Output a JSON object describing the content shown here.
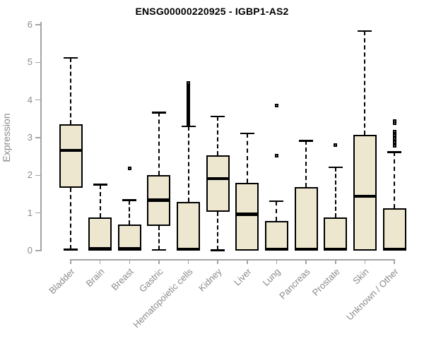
{
  "title": "ENSG00000220925 - IGBP1-AS2",
  "y_axis": {
    "label": "Expression",
    "ticks": [
      0,
      1,
      2,
      3,
      4,
      5,
      6
    ]
  },
  "colors": {
    "box_fill": "#EDE7D0",
    "line": "#000000",
    "axis_line": "#A3A3A3",
    "tick_text": "#8A8A8A",
    "title_text": "#000000",
    "background": "#FFFFFF"
  },
  "chart_data": {
    "type": "boxplot",
    "title": "ENSG00000220925 - IGBP1-AS2",
    "xlabel": "",
    "ylabel": "Expression",
    "ylim": [
      0,
      6
    ],
    "grid": false,
    "categories": [
      "Bladder",
      "Brain",
      "Breast",
      "Gastric",
      "Hematopoietic cells",
      "Kidney",
      "Liver",
      "Lung",
      "Pancreas",
      "Prostate",
      "Skin",
      "Unknown / Other"
    ],
    "series": [
      {
        "name": "Bladder",
        "whisker_low": 0.03,
        "q1": 1.66,
        "median": 2.66,
        "q3": 3.35,
        "whisker_high": 5.12,
        "outliers": []
      },
      {
        "name": "Brain",
        "whisker_low": 0.0,
        "q1": 0.0,
        "median": 0.05,
        "q3": 0.88,
        "whisker_high": 1.75,
        "outliers": []
      },
      {
        "name": "Breast",
        "whisker_low": 0.0,
        "q1": 0.0,
        "median": 0.05,
        "q3": 0.69,
        "whisker_high": 1.34,
        "outliers": [
          2.19
        ]
      },
      {
        "name": "Gastric",
        "whisker_low": 0.02,
        "q1": 0.66,
        "median": 1.34,
        "q3": 2.01,
        "whisker_high": 3.67,
        "outliers": []
      },
      {
        "name": "Hematopoietic cells",
        "whisker_low": 0.0,
        "q1": 0.0,
        "median": 0.04,
        "q3": 1.29,
        "whisker_high": 3.3,
        "outliers": [
          3.32,
          3.35,
          3.38,
          3.41,
          3.44,
          3.47,
          3.5,
          3.53,
          3.56,
          3.59,
          3.62,
          3.65,
          3.68,
          3.71,
          3.74,
          3.77,
          3.8,
          3.83,
          3.86,
          3.89,
          3.92,
          3.95,
          3.98,
          4.01,
          4.04,
          4.07,
          4.1,
          4.13,
          4.16,
          4.19,
          4.22,
          4.25,
          4.28,
          4.31,
          4.34,
          4.37,
          4.4,
          4.43,
          4.46
        ]
      },
      {
        "name": "Kidney",
        "whisker_low": 0.01,
        "q1": 1.03,
        "median": 1.91,
        "q3": 2.53,
        "whisker_high": 3.56,
        "outliers": []
      },
      {
        "name": "Liver",
        "whisker_low": 0.0,
        "q1": 0.0,
        "median": 0.97,
        "q3": 1.8,
        "whisker_high": 3.11,
        "outliers": []
      },
      {
        "name": "Lung",
        "whisker_low": 0.0,
        "q1": 0.0,
        "median": 0.04,
        "q3": 0.78,
        "whisker_high": 1.31,
        "outliers": [
          2.53,
          3.86
        ]
      },
      {
        "name": "Pancreas",
        "whisker_low": 0.0,
        "q1": 0.0,
        "median": 0.04,
        "q3": 1.69,
        "whisker_high": 2.92,
        "outliers": []
      },
      {
        "name": "Prostate",
        "whisker_low": 0.0,
        "q1": 0.0,
        "median": 0.04,
        "q3": 0.88,
        "whisker_high": 2.21,
        "outliers": [
          2.8
        ]
      },
      {
        "name": "Skin",
        "whisker_low": 0.0,
        "q1": 0.0,
        "median": 1.44,
        "q3": 3.08,
        "whisker_high": 5.83,
        "outliers": []
      },
      {
        "name": "Unknown / Other",
        "whisker_low": 0.0,
        "q1": 0.0,
        "median": 0.04,
        "q3": 1.13,
        "whisker_high": 2.62,
        "outliers": [
          2.78,
          2.88,
          2.97,
          3.06,
          3.16,
          3.39,
          3.44
        ]
      }
    ]
  }
}
